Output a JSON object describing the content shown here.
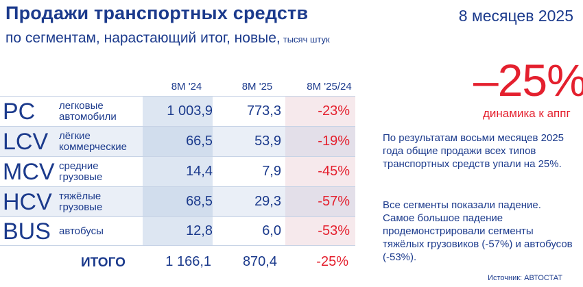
{
  "header": {
    "title": "Продажи транспортных средств",
    "subtitle": "по сегментам, нарастающий итог, новые,",
    "units": "тысяч штук",
    "period": "8 месяцев 2025"
  },
  "table": {
    "columns": [
      "8M '24",
      "8M '25",
      "8M '25/24"
    ],
    "rows": [
      {
        "abbr": "PC",
        "desc": "легковые автомобили",
        "v24": "1 003,9",
        "v25": "773,3",
        "change": "-23%"
      },
      {
        "abbr": "LCV",
        "desc": "лёгкие коммерческие",
        "v24": "66,5",
        "v25": "53,9",
        "change": "-19%"
      },
      {
        "abbr": "MCV",
        "desc": "средние грузовые",
        "v24": "14,4",
        "v25": "7,9",
        "change": "-45%"
      },
      {
        "abbr": "HCV",
        "desc": "тяжёлые грузовые",
        "v24": "68,5",
        "v25": "29,3",
        "change": "-57%"
      },
      {
        "abbr": "BUS",
        "desc": "автобусы",
        "v24": "12,8",
        "v25": "6,0",
        "change": "-53%"
      }
    ],
    "total": {
      "label": "ИТОГО",
      "v24": "1 166,1",
      "v25": "870,4",
      "change": "-25%"
    }
  },
  "highlight": {
    "value": "–25%",
    "label": "динамика к аппг"
  },
  "notes": [
    "По результатам восьми месяцев 2025 года общие продажи всех типов транспортных средств упали на 25%.",
    "Все сегменты показали падение. Самое большое падение продемонстрировали сегменты тяжёлых грузовиков (-57%) и автобусов (-53%)."
  ],
  "source": "Источник: АВТОСТАТ",
  "colors": {
    "primary": "#1b3a8c",
    "accent": "#e4202e"
  }
}
